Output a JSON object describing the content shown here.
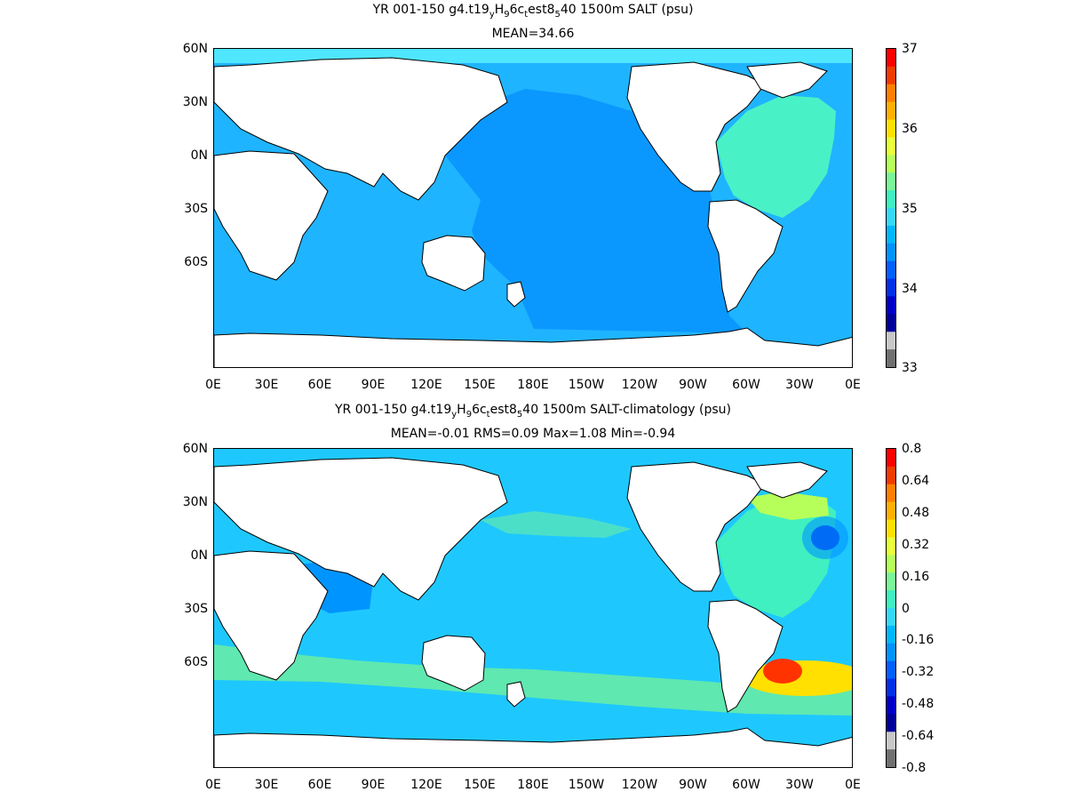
{
  "panels": [
    {
      "title_main": "YR 001-150 g4.t19",
      "title_s1": "y",
      "title_m1": "H",
      "title_s2": "9",
      "title_m2": "6c",
      "title_s3": "t",
      "title_m3": "est8",
      "title_s4": "5",
      "title_m4": "40 1500m SALT (psu)",
      "stats": "MEAN=34.66",
      "colorbar_labels": [
        "37",
        "36",
        "35",
        "34",
        "33"
      ],
      "colorbar_colors": [
        "#ff0000",
        "#f03c00",
        "#ff8000",
        "#ffb000",
        "#ffe000",
        "#e8ff3a",
        "#b6ff5a",
        "#7cf598",
        "#40f0c0",
        "#36d8f8",
        "#00b8ff",
        "#0094ff",
        "#0060ff",
        "#0030e8",
        "#0000c8",
        "#000098",
        "#c8c8c8",
        "#707070"
      ],
      "regions": {
        "pacific": "#0a98ff",
        "indian_atlantic_south": "#1fb4ff",
        "north_atlantic": "#49f2c6",
        "arctic_fringe": "#4fe6ff"
      }
    },
    {
      "title_main": "YR 001-150 g4.t19",
      "title_s1": "y",
      "title_m1": "H",
      "title_s2": "9",
      "title_m2": "6c",
      "title_s3": "t",
      "title_m3": "est8",
      "title_s4": "5",
      "title_m4": "40 1500m SALT-climatology (psu)",
      "stats": "MEAN=-0.01   RMS=0.09   Max=1.08   Min=-0.94",
      "colorbar_labels": [
        "0.8",
        "0.64",
        "0.48",
        "0.32",
        "0.16",
        "0",
        "-0.16",
        "-0.32",
        "-0.48",
        "-0.64",
        "-0.8"
      ],
      "colorbar_colors": [
        "#ff0000",
        "#f03c00",
        "#ff8000",
        "#ffb000",
        "#ffe000",
        "#e8ff3a",
        "#b6ff5a",
        "#7cf598",
        "#40f0c0",
        "#36d8f8",
        "#00b8ff",
        "#0094ff",
        "#0060ff",
        "#0030e8",
        "#0000c8",
        "#000098",
        "#c8c8c8",
        "#707070"
      ],
      "regions": {
        "background": "#1ec8ff",
        "southern_band": "#5fe8b0",
        "north_atlantic": "#40f0c0",
        "labrador": "#b6ff5a",
        "gulf_stream_low": "#0030e8",
        "brazil_malvinas_high": "#ff3300",
        "brazil_malvinas_mid": "#ffe000",
        "arabian_sea_low": "#0094ff"
      }
    }
  ],
  "axes": {
    "x_ticks": [
      "0E",
      "30E",
      "60E",
      "90E",
      "120E",
      "150E",
      "180E",
      "150W",
      "120W",
      "90W",
      "60W",
      "30W",
      "0E"
    ],
    "y_ticks": [
      "60N",
      "30N",
      "0N",
      "30S",
      "60S"
    ]
  }
}
